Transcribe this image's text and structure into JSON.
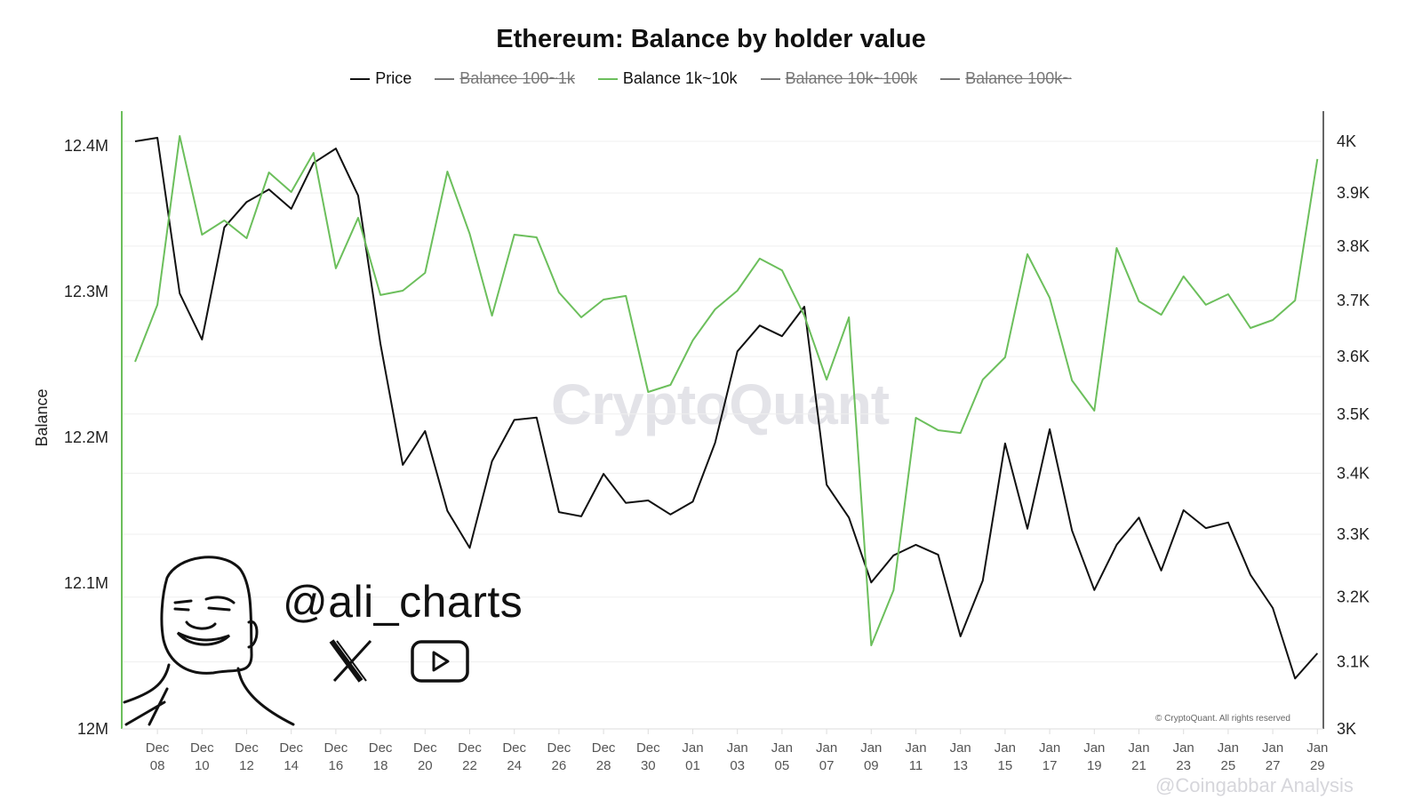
{
  "chart_data": {
    "type": "line",
    "title": "Ethereum: Balance by holder value",
    "ylabel": "Balance",
    "y_left": {
      "label": "Balance",
      "range": [
        12000000,
        12440000
      ],
      "ticks": [
        "12M",
        "12.1M",
        "12.2M",
        "12.3M",
        "12.4M"
      ],
      "tick_values": [
        12000000,
        12100000,
        12200000,
        12300000,
        12400000
      ]
    },
    "y_right": {
      "scale": "log",
      "range": [
        3000,
        4000
      ],
      "ticks": [
        "3K",
        "3.1K",
        "3.2K",
        "3.3K",
        "3.4K",
        "3.5K",
        "3.6K",
        "3.7K",
        "3.8K",
        "3.9K",
        "4K"
      ],
      "tick_values": [
        3000,
        3100,
        3200,
        3300,
        3400,
        3500,
        3600,
        3700,
        3800,
        3900,
        4000
      ]
    },
    "x_ticks": [
      [
        "Dec",
        "08"
      ],
      [
        "Dec",
        "10"
      ],
      [
        "Dec",
        "12"
      ],
      [
        "Dec",
        "14"
      ],
      [
        "Dec",
        "16"
      ],
      [
        "Dec",
        "18"
      ],
      [
        "Dec",
        "20"
      ],
      [
        "Dec",
        "22"
      ],
      [
        "Dec",
        "24"
      ],
      [
        "Dec",
        "26"
      ],
      [
        "Dec",
        "28"
      ],
      [
        "Dec",
        "30"
      ],
      [
        "Jan",
        "01"
      ],
      [
        "Jan",
        "03"
      ],
      [
        "Jan",
        "05"
      ],
      [
        "Jan",
        "07"
      ],
      [
        "Jan",
        "09"
      ],
      [
        "Jan",
        "11"
      ],
      [
        "Jan",
        "13"
      ],
      [
        "Jan",
        "15"
      ],
      [
        "Jan",
        "17"
      ],
      [
        "Jan",
        "19"
      ],
      [
        "Jan",
        "21"
      ],
      [
        "Jan",
        "23"
      ],
      [
        "Jan",
        "25"
      ],
      [
        "Jan",
        "27"
      ],
      [
        "Jan",
        "29"
      ]
    ],
    "x_start_date": "Dec 07",
    "x_end_date": "Jan 29",
    "grid": true,
    "legend": [
      {
        "name": "Price",
        "color": "#111111",
        "visible": true
      },
      {
        "name": "Balance 100~1k",
        "color": "#777777",
        "visible": false
      },
      {
        "name": "Balance 1k~10k",
        "color": "#6cbf5c",
        "visible": true
      },
      {
        "name": "Balance 10k~100k",
        "color": "#777777",
        "visible": false
      },
      {
        "name": "Balance 100k~",
        "color": "#777777",
        "visible": false
      }
    ],
    "legend_placement": "top-center",
    "series": [
      {
        "name": "Price",
        "axis": "right",
        "color": "#111111",
        "values": [
          4000,
          4007,
          3713,
          3630,
          3835,
          3883,
          3907,
          3870,
          3958,
          3986,
          3895,
          3622,
          3414,
          3471,
          3338,
          3278,
          3420,
          3490,
          3494,
          3336,
          3329,
          3399,
          3351,
          3355,
          3332,
          3353,
          3451,
          3609,
          3655,
          3636,
          3689,
          3381,
          3327,
          3223,
          3266,
          3283,
          3267,
          3139,
          3226,
          3450,
          3309,
          3474,
          3306,
          3211,
          3283,
          3327,
          3242,
          3339,
          3310,
          3319,
          3235,
          3183,
          3075,
          3113
        ]
      },
      {
        "name": "Balance 1k~10k",
        "axis": "left",
        "color": "#6cbf5c",
        "values": [
          12251800,
          12290900,
          12406700,
          12339000,
          12348800,
          12336600,
          12381700,
          12368300,
          12395100,
          12315900,
          12350600,
          12297600,
          12300600,
          12312800,
          12382300,
          12339600,
          12283500,
          12339000,
          12337200,
          12299400,
          12282300,
          12294500,
          12297000,
          12231100,
          12236000,
          12266500,
          12287800,
          12300600,
          12322600,
          12314600,
          12283500,
          12239600,
          12282300,
          12057300,
          12095100,
          12213400,
          12204900,
          12203000,
          12239600,
          12254900,
          12325600,
          12295700,
          12239000,
          12218300,
          12329900,
          12293300,
          12284100,
          12310400,
          12290900,
          12298200,
          12275000,
          12280500,
          12293900,
          12390900
        ]
      }
    ]
  },
  "watermark": "CryptoQuant",
  "branding": {
    "handle": "@ali_charts",
    "icons": [
      "x-logo-icon",
      "youtube-icon",
      "cartoon-face-icon"
    ]
  },
  "copyright": "© CryptoQuant. All rights reserved",
  "source_watermark": "@Coingabbar Analysis"
}
